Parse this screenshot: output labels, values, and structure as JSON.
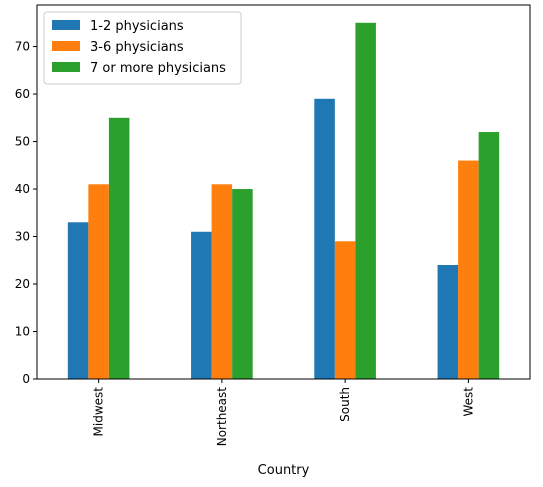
{
  "chart_data": {
    "type": "bar",
    "categories": [
      "Midwest",
      "Northeast",
      "South",
      "West"
    ],
    "series": [
      {
        "name": "1-2 physicians",
        "values": [
          33,
          31,
          59,
          24
        ],
        "color": "#1f77b4"
      },
      {
        "name": "3-6 physicians",
        "values": [
          41,
          41,
          29,
          46
        ],
        "color": "#ff7f0e"
      },
      {
        "name": "7 or more physicians",
        "values": [
          55,
          40,
          75,
          52
        ],
        "color": "#2ca02c"
      }
    ],
    "xlabel": "Country",
    "ylabel": "",
    "ylim": [
      0,
      78.75
    ],
    "yticks": [
      0,
      10,
      20,
      30,
      40,
      50,
      60,
      70
    ],
    "legend_position": "top-left",
    "grid": false
  }
}
